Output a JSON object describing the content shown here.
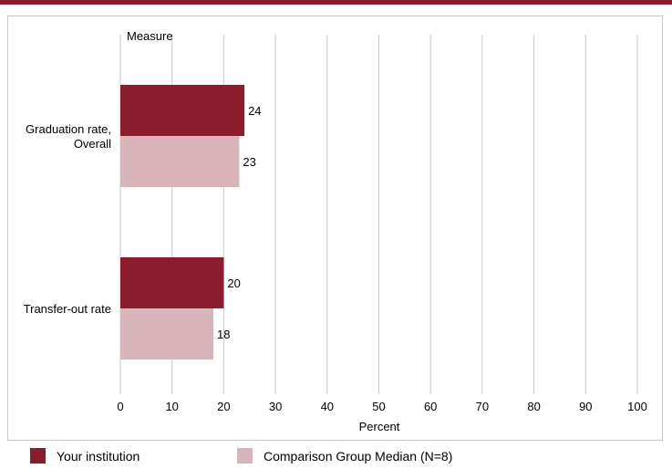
{
  "colors": {
    "accent": "#8b1c2c",
    "your_institution": "#8b1c2c",
    "comparison": "#d8b4bb",
    "grid": "#c8c8c8"
  },
  "chart_data": {
    "type": "bar",
    "orientation": "horizontal",
    "y_axis_title": "Measure",
    "xlabel": "Percent",
    "categories": [
      {
        "lines": [
          "Graduation rate,",
          "Overall"
        ]
      },
      {
        "lines": [
          "Transfer-out rate"
        ]
      }
    ],
    "series": [
      {
        "name": "Your institution",
        "values": [
          24,
          20
        ]
      },
      {
        "name": "Comparison Group Median (N=8)",
        "values": [
          23,
          18
        ]
      }
    ],
    "data_labels": [
      [
        "24",
        "20"
      ],
      [
        "23",
        "18"
      ]
    ],
    "xlim": [
      0,
      100
    ],
    "x_ticks": [
      0,
      10,
      20,
      30,
      40,
      50,
      60,
      70,
      80,
      90,
      100
    ],
    "grid": true,
    "legend_position": "bottom"
  }
}
